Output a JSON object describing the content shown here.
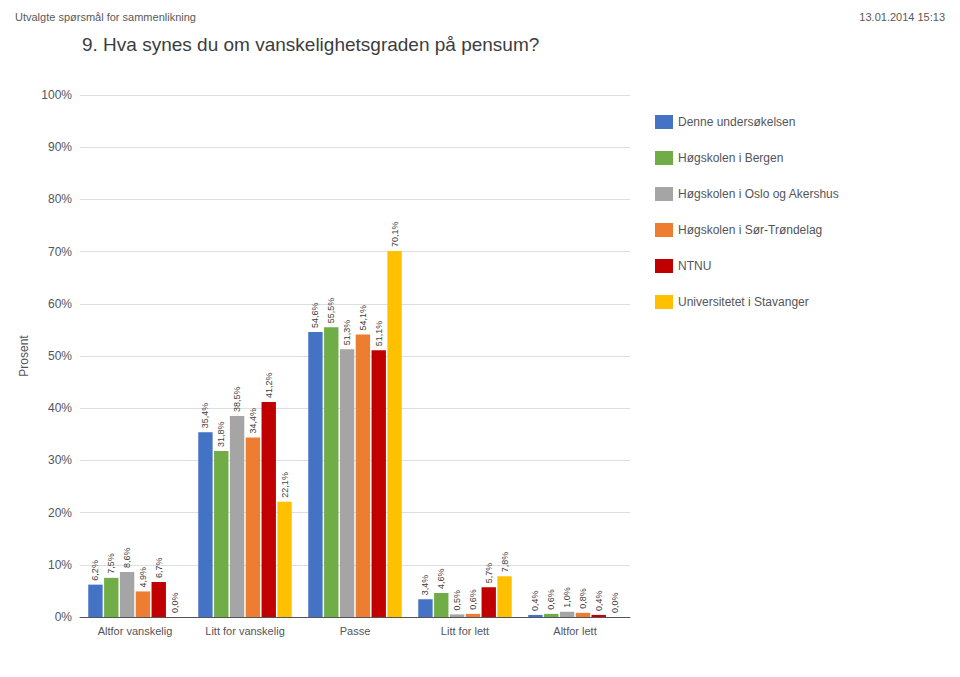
{
  "chart_data": {
    "type": "bar",
    "title": "9. Hva synes du om vanskelighetsgraden på pensum?",
    "annotations": [
      "Utvalgte spørsmål for sammenlikning",
      "13.01.2014 15:13"
    ],
    "ylabel": "Prosent",
    "categories": [
      "Altfor vanskelig",
      "Litt for vanskelig",
      "Passe",
      "Litt for lett",
      "Altfor lett"
    ],
    "series": [
      {
        "name": "Denne undersøkelsen",
        "color": "#4472C4",
        "values": [
          6.2,
          35.4,
          54.6,
          3.4,
          0.4
        ],
        "value_labels": [
          "6,2%",
          "35,4%",
          "54,6%",
          "3,4%",
          "0,4%"
        ]
      },
      {
        "name": "Høgskolen i Bergen",
        "color": "#70AD47",
        "values": [
          7.5,
          31.8,
          55.5,
          4.6,
          0.6
        ],
        "value_labels": [
          "7,5%",
          "31,8%",
          "55,5%",
          "4,6%",
          "0,6%"
        ]
      },
      {
        "name": "Høgskolen i Oslo og Akershus",
        "color": "#A5A5A5",
        "values": [
          8.6,
          38.5,
          51.3,
          0.5,
          1.0
        ],
        "value_labels": [
          "8,6%",
          "38,5%",
          "51,3%",
          "0,5%",
          "1,0%"
        ]
      },
      {
        "name": "Høgskolen i Sør-Trøndelag",
        "color": "#ED7D31",
        "values": [
          4.9,
          34.4,
          54.1,
          0.6,
          0.8
        ],
        "value_labels": [
          "4,9%",
          "34,4%",
          "54,1%",
          "0,6%",
          "0,8%"
        ]
      },
      {
        "name": "NTNU",
        "color": "#C00000",
        "values": [
          6.7,
          41.2,
          51.1,
          5.7,
          0.4
        ],
        "value_labels": [
          "6,7%",
          "41,2%",
          "51,1%",
          "5,7%",
          "0,4%"
        ]
      },
      {
        "name": "Universitetet i Stavanger",
        "color": "#FFC000",
        "values": [
          0.0,
          22.1,
          70.1,
          7.8,
          0.0
        ],
        "value_labels": [
          "0,0%",
          "22,1%",
          "70,1%",
          "7,8%",
          "0,0%"
        ]
      }
    ],
    "ylim": [
      0,
      100
    ],
    "yticks": [
      {
        "value": 0,
        "label": "0%"
      },
      {
        "value": 10,
        "label": "10%"
      },
      {
        "value": 20,
        "label": "20%"
      },
      {
        "value": 30,
        "label": "30%"
      },
      {
        "value": 40,
        "label": "40%"
      },
      {
        "value": 50,
        "label": "50%"
      },
      {
        "value": 60,
        "label": "60%"
      },
      {
        "value": 70,
        "label": "70%"
      },
      {
        "value": 80,
        "label": "80%"
      },
      {
        "value": 90,
        "label": "90%"
      },
      {
        "value": 100,
        "label": "100%"
      }
    ],
    "grid": true,
    "legend": "right",
    "data_labels": true
  }
}
